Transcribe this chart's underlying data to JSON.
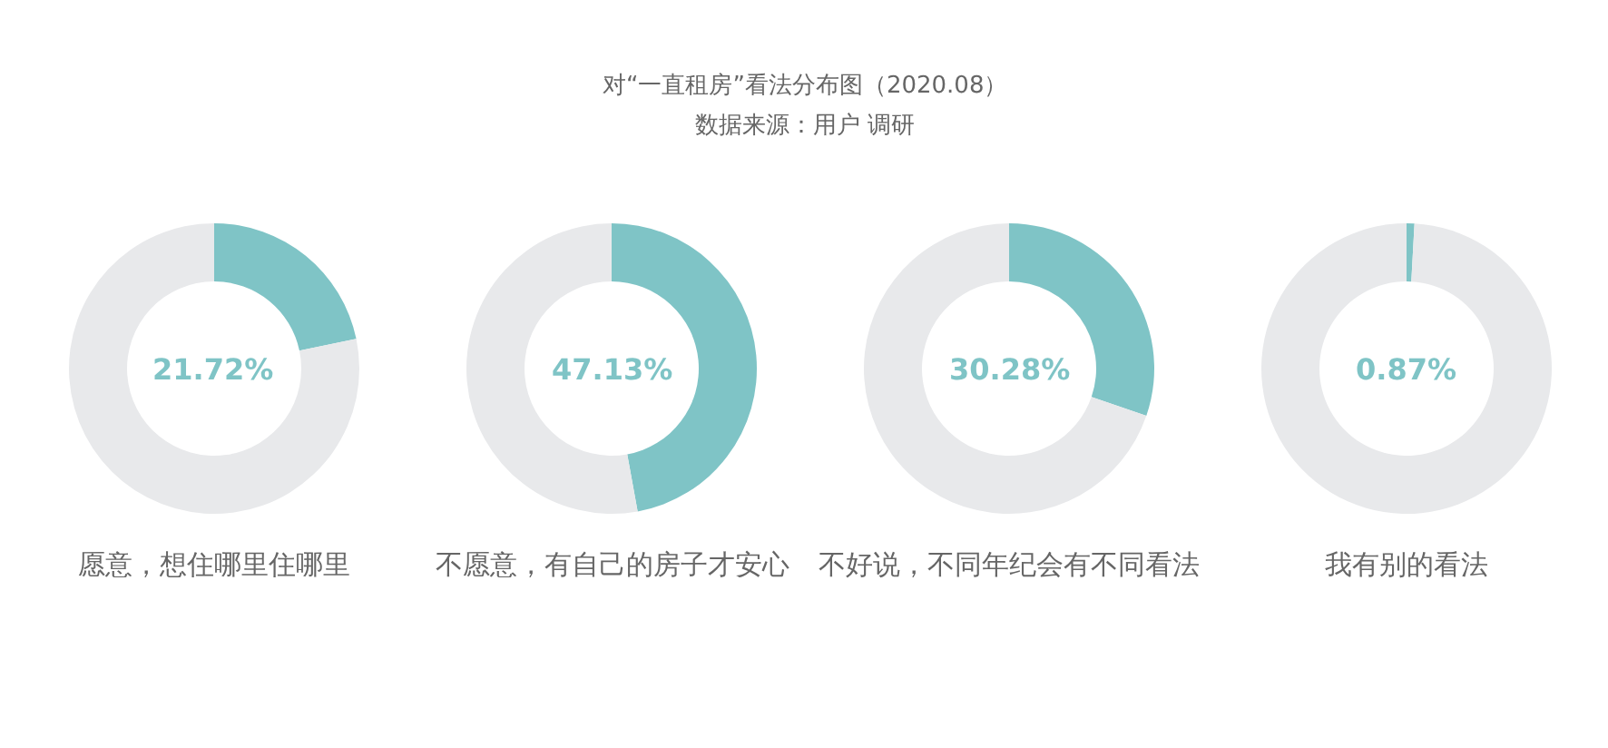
{
  "chart_data": [
    {
      "type": "other",
      "title": "对“一直租房”看法分布图（2020.08）",
      "subtitle": "数据来源：用户 调研"
    },
    {
      "type": "donut",
      "title": "愿意，想住哪里住哪里",
      "categories": [
        null,
        null
      ],
      "values": [
        21.72,
        78.28
      ],
      "colors": [
        "#7fc4c6",
        "#e8e9eb"
      ],
      "annotations": [
        "21.72%"
      ]
    },
    {
      "type": "donut",
      "title": "不愿意，有自己的房子才安心",
      "categories": [
        null,
        null
      ],
      "values": [
        47.13,
        52.87
      ],
      "colors": [
        "#7fc4c6",
        "#e8e9eb"
      ],
      "annotations": [
        "47.13%"
      ]
    },
    {
      "type": "donut",
      "title": "不好说，不同年纪会有不同看法",
      "categories": [
        null,
        null
      ],
      "values": [
        30.28,
        69.72
      ],
      "colors": [
        "#7fc4c6",
        "#e8e9eb"
      ],
      "annotations": [
        "30.28%"
      ]
    },
    {
      "type": "donut",
      "title": "我有别的看法",
      "categories": [
        null,
        null
      ],
      "values": [
        0.87,
        99.13
      ],
      "colors": [
        "#7fc4c6",
        "#e8e9eb"
      ],
      "annotations": [
        "0.87%"
      ]
    }
  ]
}
